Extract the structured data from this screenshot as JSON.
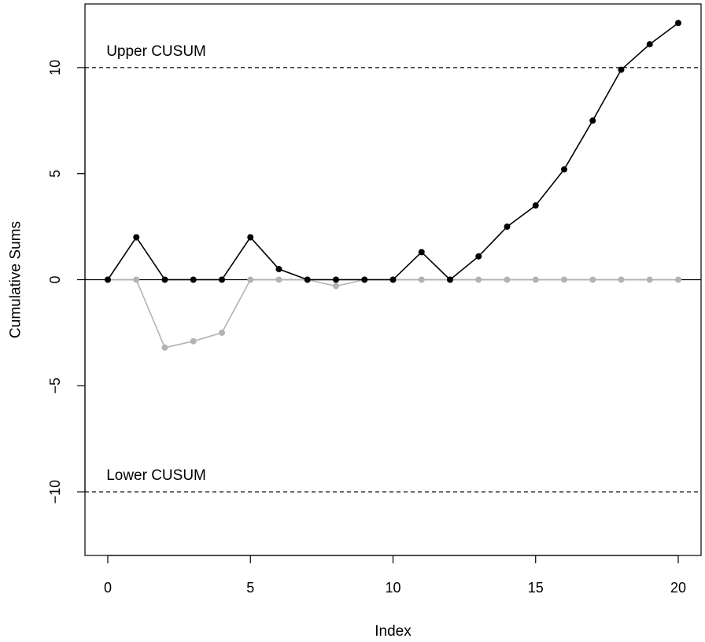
{
  "chart_data": {
    "type": "line",
    "xlabel": "Index",
    "ylabel": "Cumulative Sums",
    "xlim": [
      -0.8,
      20.8
    ],
    "ylim": [
      -13,
      13
    ],
    "xticks": [
      0,
      5,
      10,
      15,
      20
    ],
    "yticks": [
      -10,
      -5,
      0,
      5,
      10
    ],
    "grid": false,
    "x": [
      0,
      1,
      2,
      3,
      4,
      5,
      6,
      7,
      8,
      9,
      10,
      11,
      12,
      13,
      14,
      15,
      16,
      17,
      18,
      19,
      20
    ],
    "series": [
      {
        "values": [
          0,
          2,
          0,
          0,
          0,
          2,
          0.5,
          0,
          0,
          0,
          0,
          1.3,
          0,
          1.1,
          2.5,
          3.5,
          5.2,
          7.5,
          9.9,
          11.1,
          12.1
        ],
        "color": "#000000"
      },
      {
        "values": [
          0,
          0,
          -3.2,
          -2.9,
          -2.5,
          0,
          0,
          0,
          -0.3,
          0,
          0,
          0,
          0,
          0,
          0,
          0,
          0,
          0,
          0,
          0,
          0
        ],
        "color": "#b3b3b3"
      }
    ],
    "reference_lines": [
      {
        "y": 10,
        "style": "dashed",
        "label": "Upper CUSUM"
      },
      {
        "y": -10,
        "style": "dashed",
        "label": "Lower CUSUM"
      },
      {
        "y": 0,
        "style": "solid",
        "label": ""
      }
    ]
  }
}
